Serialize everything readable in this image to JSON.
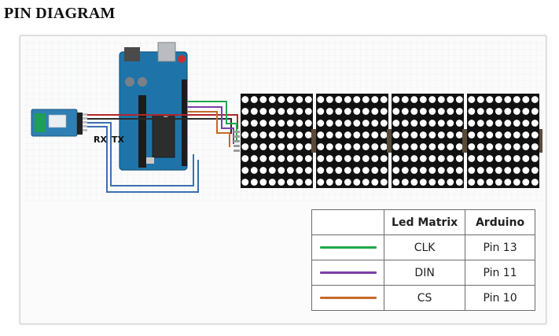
{
  "page": {
    "title": "PIN DIAGRAM"
  },
  "bluetooth": {
    "rx_label": "RX",
    "tx_label": "TX"
  },
  "wire_colors": {
    "clk": "#1fa84e",
    "din": "#7d3fa6",
    "cs": "#c66a2a",
    "vcc": "#b3262b",
    "gnd": "#2b2b2b",
    "serial": "#3c6fb0"
  },
  "matrix": {
    "modules": 4,
    "rows": 8,
    "cols": 8,
    "led_color": "#ffffff",
    "body_color": "#111111"
  },
  "legend": {
    "headers": {
      "blank": "",
      "led_matrix": "Led Matrix",
      "arduino": "Arduino"
    },
    "rows": [
      {
        "signal": "CLK",
        "pin": "Pin 13",
        "color": "#1fa84e"
      },
      {
        "signal": "DIN",
        "pin": "Pin 11",
        "color": "#7d3fa6"
      },
      {
        "signal": "CS",
        "pin": "Pin 10",
        "color": "#c66a2a"
      }
    ]
  }
}
